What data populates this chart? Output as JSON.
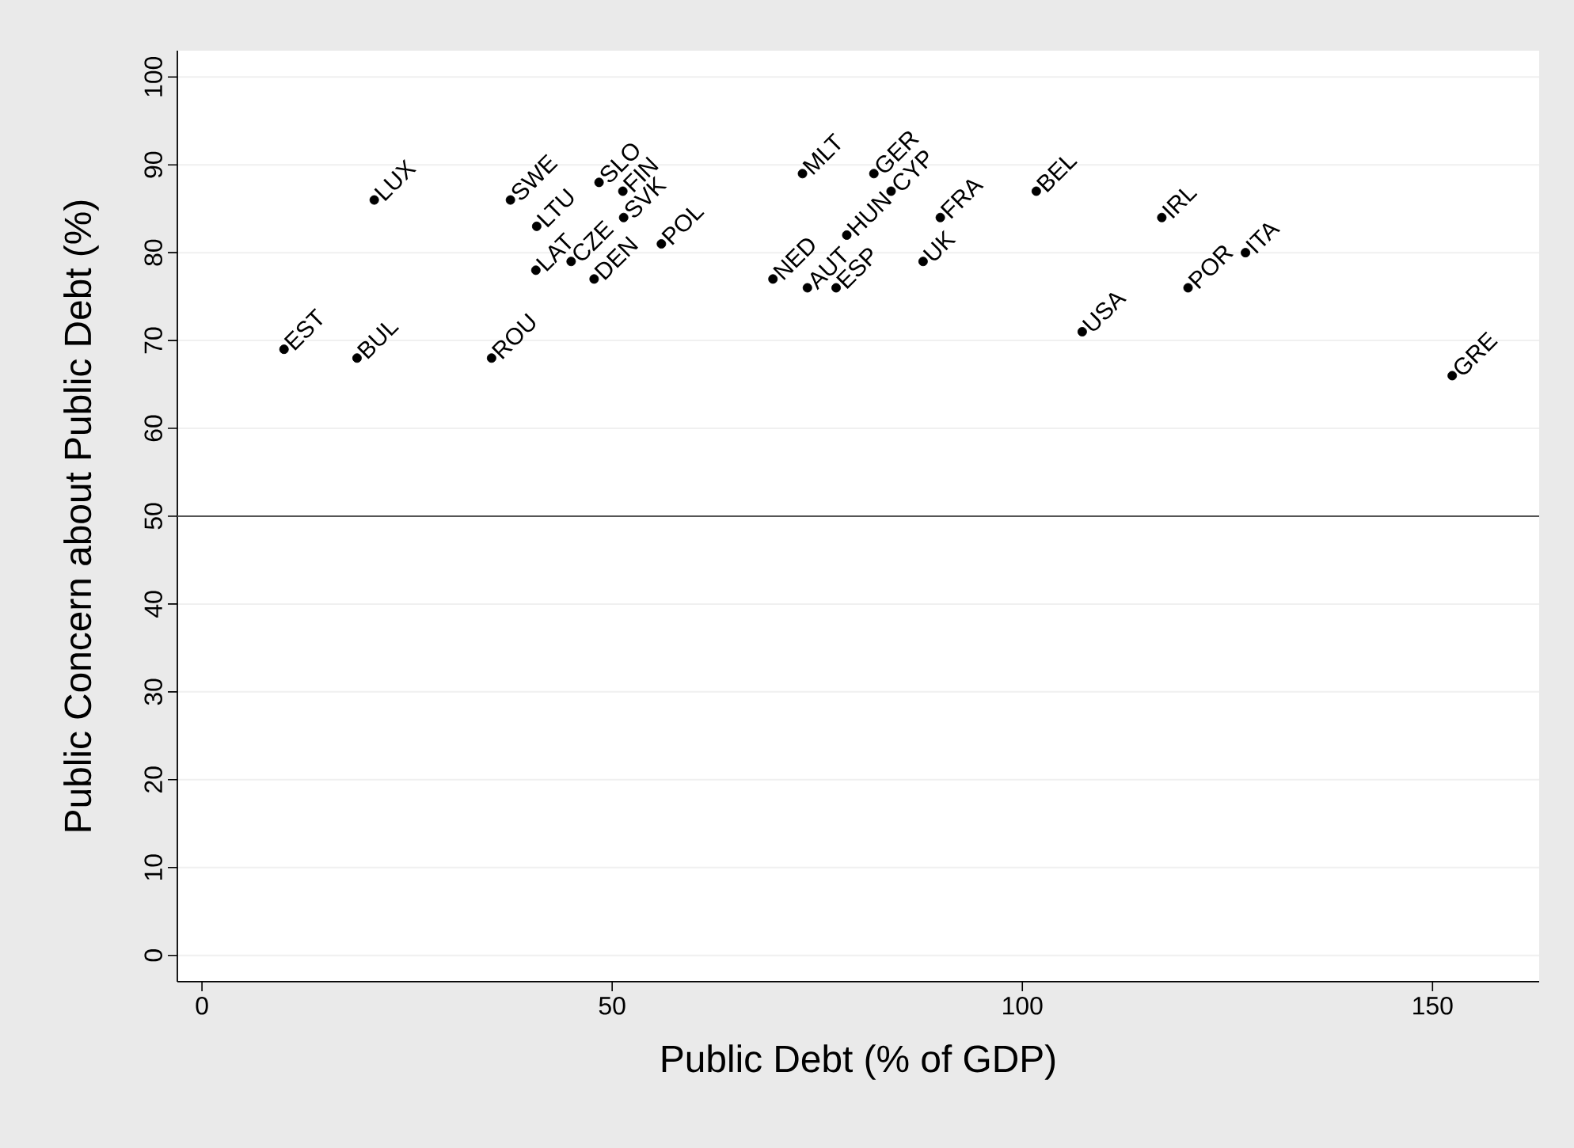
{
  "chart_data": {
    "type": "scatter",
    "xlabel": "Public Debt (% of GDP)",
    "ylabel": "Public Concern about Public Debt (%)",
    "xlim": [
      -3,
      163
    ],
    "ylim": [
      -3,
      103
    ],
    "xticks": [
      0,
      50,
      100,
      150
    ],
    "yticks": [
      0,
      10,
      20,
      30,
      40,
      50,
      60,
      70,
      80,
      90,
      100
    ],
    "grid": "y",
    "marker": "circle",
    "series": [
      {
        "color": "#000000",
        "x": [
          10,
          18.9,
          21,
          35.3,
          37.6,
          40.8,
          40.7,
          48.4,
          51.3,
          51.4,
          45,
          47.8,
          56,
          73.2,
          81.9,
          84,
          78.6,
          69.6,
          73.8,
          77.3,
          87.9,
          90,
          101.7,
          107.3,
          117,
          120.2,
          127.2,
          152.4
        ],
        "values": [
          69,
          68,
          86,
          68,
          86,
          83,
          78,
          88,
          87,
          84,
          79,
          77,
          81,
          89,
          89,
          87,
          82,
          77,
          76,
          76,
          79,
          84,
          87,
          71,
          84,
          76,
          80,
          66
        ]
      }
    ],
    "ref_lines": [
      {
        "axis": "y",
        "value": 50,
        "color": "#555555"
      }
    ],
    "annotations": [
      {
        "text": "EST",
        "x": 10,
        "y": 69
      },
      {
        "text": "BUL",
        "x": 18.9,
        "y": 68
      },
      {
        "text": "LUX",
        "x": 21,
        "y": 86
      },
      {
        "text": "ROU",
        "x": 35.3,
        "y": 68
      },
      {
        "text": "SWE",
        "x": 37.6,
        "y": 86
      },
      {
        "text": "LTU",
        "x": 40.8,
        "y": 83
      },
      {
        "text": "LAT",
        "x": 40.7,
        "y": 78
      },
      {
        "text": "SLO",
        "x": 48.4,
        "y": 88
      },
      {
        "text": "FIN",
        "x": 51.3,
        "y": 87
      },
      {
        "text": "SVK",
        "x": 51.4,
        "y": 84
      },
      {
        "text": "CZE",
        "x": 45,
        "y": 79
      },
      {
        "text": "DEN",
        "x": 47.8,
        "y": 77
      },
      {
        "text": "POL",
        "x": 56,
        "y": 81
      },
      {
        "text": "MLT",
        "x": 73.2,
        "y": 89
      },
      {
        "text": "GER",
        "x": 81.9,
        "y": 89
      },
      {
        "text": "CYP",
        "x": 84,
        "y": 87
      },
      {
        "text": "HUN",
        "x": 78.6,
        "y": 82
      },
      {
        "text": "NED",
        "x": 69.6,
        "y": 77
      },
      {
        "text": "AUT",
        "x": 73.8,
        "y": 76
      },
      {
        "text": "ESP",
        "x": 77.3,
        "y": 76
      },
      {
        "text": "UK",
        "x": 87.9,
        "y": 79
      },
      {
        "text": "FRA",
        "x": 90,
        "y": 84
      },
      {
        "text": "BEL",
        "x": 101.7,
        "y": 87
      },
      {
        "text": "USA",
        "x": 107.3,
        "y": 71
      },
      {
        "text": "IRL",
        "x": 117,
        "y": 84
      },
      {
        "text": "POR",
        "x": 120.2,
        "y": 76
      },
      {
        "text": "ITA",
        "x": 127.2,
        "y": 80
      },
      {
        "text": "GRE",
        "x": 152.4,
        "y": 66
      }
    ]
  }
}
